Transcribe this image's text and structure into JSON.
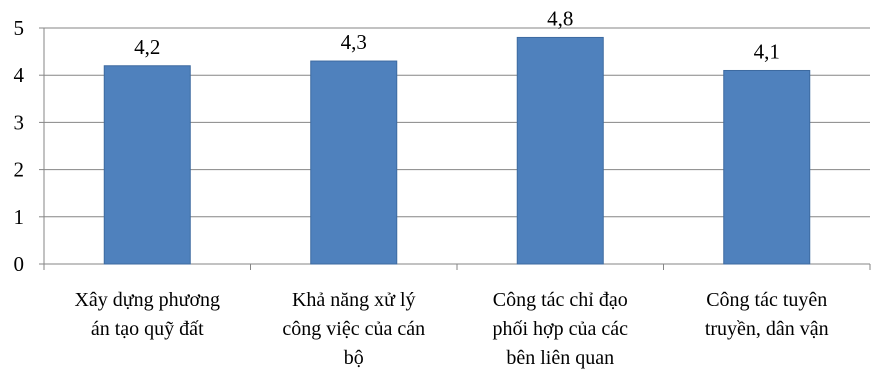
{
  "chart_data": {
    "type": "bar",
    "categories": [
      [
        "Xây dựng phương",
        "án tạo quỹ đất"
      ],
      [
        "Khả năng xử lý",
        "công việc của cán",
        "bộ"
      ],
      [
        "Công tác chỉ đạo",
        "phối hợp của các",
        "bên liên quan"
      ],
      [
        "Công tác tuyên",
        "truyền, dân vận"
      ]
    ],
    "values": [
      4.2,
      4.3,
      4.8,
      4.1
    ],
    "data_labels": [
      "4,2",
      "4,3",
      "4,8",
      "4,1"
    ],
    "y_ticks": [
      0,
      1,
      2,
      3,
      4,
      5
    ],
    "ylim": [
      0,
      5
    ],
    "grid": true,
    "legend": "none",
    "colors": {
      "bar": "#4F81BD",
      "bar_border": "#3D6AA0",
      "grid": "#868686",
      "axis": "#868686"
    }
  }
}
